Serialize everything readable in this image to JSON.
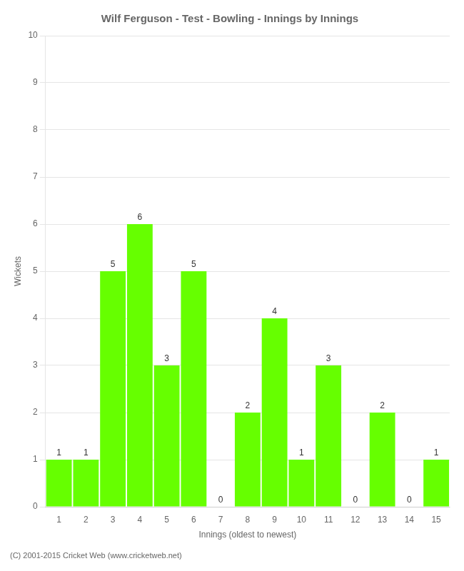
{
  "chart_data": {
    "type": "bar",
    "title": "Wilf Ferguson - Test - Bowling - Innings by Innings",
    "xlabel": "Innings (oldest to newest)",
    "ylabel": "Wickets",
    "categories": [
      1,
      2,
      3,
      4,
      5,
      6,
      7,
      8,
      9,
      10,
      11,
      12,
      13,
      14,
      15
    ],
    "values": [
      1,
      1,
      5,
      6,
      3,
      5,
      0,
      2,
      4,
      1,
      3,
      0,
      2,
      0,
      1
    ],
    "color": "#66ff00",
    "ylim": [
      0,
      10
    ],
    "yticks": [
      0,
      1,
      2,
      3,
      4,
      5,
      6,
      7,
      8,
      9,
      10
    ],
    "grid": true,
    "data_labels": true,
    "annotations": [
      "(C) 2001-2015 Cricket Web (www.cricketweb.net)"
    ]
  }
}
